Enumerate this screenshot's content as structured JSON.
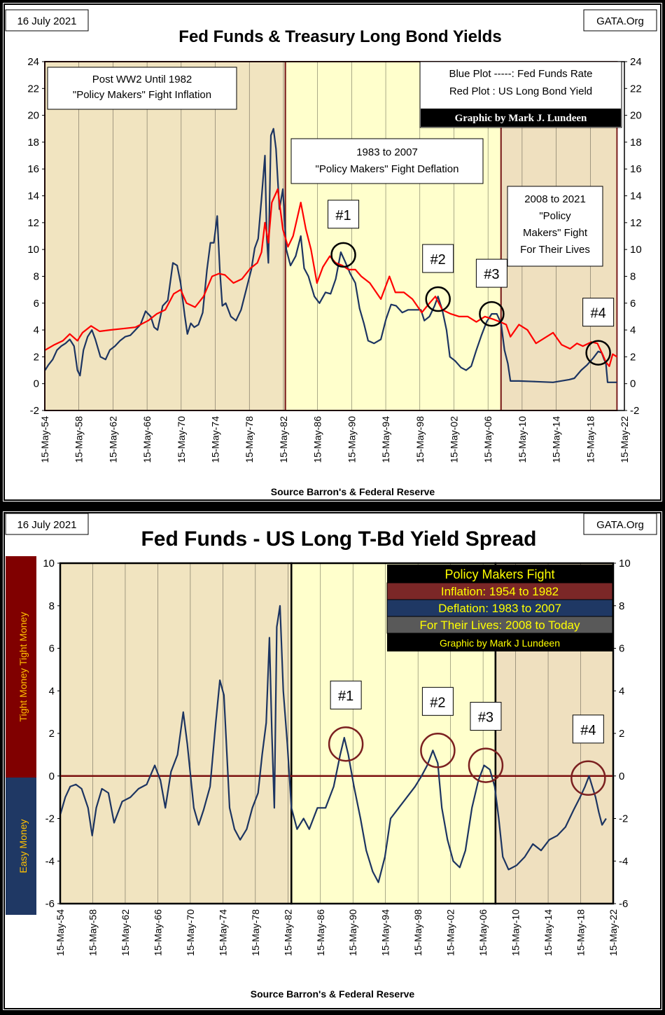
{
  "page": {
    "title": "Fed Funds & Treasury Long Bond Yields and Fed Funds - US Long T-Bd Yield Spread"
  },
  "colors": {
    "fed_funds": "#1c3461",
    "long_bond": "#ff0000",
    "era1_bg": "#f1e4c0",
    "era2_bg": "#ffffcc",
    "era3_bg": "#efe0bf",
    "era_border": "#7b1e1e",
    "tight_bar": "#800000",
    "easy_bar": "#1f3864",
    "circle1": "#000000",
    "circle2": "#7b2020"
  },
  "chart_data": [
    {
      "type": "line",
      "title": "Fed Funds & Treasury Long Bond Yields",
      "date_label": "16 July 2021",
      "site_label": "GATA.Org",
      "source": "Source Barron's & Federal Reserve",
      "ylim": [
        -2,
        24
      ],
      "yticks": [
        "-2",
        "0",
        "2",
        "4",
        "6",
        "8",
        "10",
        "12",
        "14",
        "16",
        "18",
        "20",
        "22",
        "24"
      ],
      "xlim": [
        1954.37,
        2022.37
      ],
      "xticks": [
        "15-May-54",
        "15-May-58",
        "15-May-62",
        "15-May-66",
        "15-May-70",
        "15-May-74",
        "15-May-78",
        "15-May-82",
        "15-May-86",
        "15-May-90",
        "15-May-94",
        "15-May-98",
        "15-May-02",
        "15-May-06",
        "15-May-10",
        "15-May-14",
        "15-May-18",
        "15-May-22"
      ],
      "eras": [
        {
          "start": 1954.37,
          "end": 1982.6,
          "label": "Post WW2 Until 1982 \"Policy Makers\" Fight Inflation"
        },
        {
          "start": 1982.6,
          "end": 2007.9,
          "label": "1983 to 2007 \"Policy Makers\" Fight Deflation"
        },
        {
          "start": 2007.9,
          "end": 2021.5,
          "label": "2008 to 2021 \"Policy Makers\" Fight For Their Lives"
        }
      ],
      "annotations": {
        "era1_line1": "Post WW2 Until 1982",
        "era1_line2": "\"Policy Makers\" Fight Inflation",
        "era2_line1": "1983 to 2007",
        "era2_line2": "\"Policy Makers\" Fight Deflation",
        "era3_line1": "2008 to 2021",
        "era3_line2": "\"Policy",
        "era3_line3": "Makers\" Fight",
        "era3_line4": "For Their Lives",
        "legend_line1": "Blue Plot -----: Fed Funds Rate",
        "legend_line2": "Red Plot : US Long Bond Yield",
        "credit": "Graphic by Mark J. Lundeen"
      },
      "markers": [
        {
          "label": "#1",
          "x": 1989.4,
          "y": 9.6
        },
        {
          "label": "#2",
          "x": 2000.5,
          "y": 6.3
        },
        {
          "label": "#3",
          "x": 2006.8,
          "y": 5.2
        },
        {
          "label": "#4",
          "x": 2019.3,
          "y": 2.3
        }
      ],
      "series": [
        {
          "name": "Fed Funds Rate",
          "x": [
            1954.4,
            1954.8,
            1955.3,
            1955.8,
            1956.3,
            1956.8,
            1957.3,
            1957.8,
            1958.2,
            1958.5,
            1958.9,
            1959.4,
            1959.9,
            1960.3,
            1960.9,
            1961.5,
            1962.0,
            1962.6,
            1963.2,
            1963.8,
            1964.4,
            1965.0,
            1965.6,
            1966.2,
            1966.8,
            1967.2,
            1967.6,
            1968.2,
            1968.8,
            1969.4,
            1969.9,
            1970.3,
            1970.8,
            1971.1,
            1971.5,
            1971.9,
            1972.4,
            1972.9,
            1973.4,
            1973.8,
            1974.2,
            1974.6,
            1974.9,
            1975.2,
            1975.6,
            1976.2,
            1976.8,
            1977.4,
            1978.0,
            1978.6,
            1979.0,
            1979.4,
            1979.8,
            1980.2,
            1980.4,
            1980.6,
            1980.9,
            1981.2,
            1981.5,
            1981.9,
            1982.3,
            1982.7,
            1983.2,
            1983.8,
            1984.4,
            1984.8,
            1985.3,
            1986.0,
            1986.6,
            1987.3,
            1987.9,
            1988.5,
            1989.1,
            1989.6,
            1990.2,
            1990.8,
            1991.3,
            1991.8,
            1992.3,
            1993.0,
            1993.8,
            1994.4,
            1995.0,
            1995.6,
            1996.3,
            1997.0,
            1997.8,
            1998.5,
            1998.9,
            1999.5,
            2000.1,
            2000.5,
            2001.0,
            2001.5,
            2001.9,
            2002.5,
            2003.2,
            2003.8,
            2004.4,
            2005.0,
            2005.6,
            2006.2,
            2006.8,
            2007.4,
            2007.9,
            2008.3,
            2008.7,
            2009.0,
            2010.0,
            2012.0,
            2014.0,
            2015.9,
            2016.5,
            2017.3,
            2018.0,
            2018.7,
            2019.3,
            2019.7,
            2020.0,
            2020.2,
            2020.4,
            2021.5
          ],
          "y": [
            1.0,
            1.4,
            1.8,
            2.5,
            2.8,
            3.0,
            3.3,
            2.8,
            1.0,
            0.6,
            2.5,
            3.5,
            4.0,
            3.3,
            2.0,
            1.8,
            2.5,
            2.8,
            3.2,
            3.5,
            3.6,
            4.0,
            4.4,
            5.4,
            5.0,
            4.2,
            4.0,
            5.8,
            6.2,
            9.0,
            8.8,
            7.5,
            5.0,
            3.7,
            4.5,
            4.2,
            4.4,
            5.3,
            8.5,
            10.5,
            10.5,
            12.5,
            8.5,
            5.8,
            6.0,
            5.0,
            4.7,
            5.5,
            7.0,
            8.5,
            10.1,
            10.8,
            13.8,
            17.0,
            11.0,
            9.0,
            18.5,
            19.0,
            17.5,
            13.0,
            14.5,
            10.0,
            8.8,
            9.5,
            11.0,
            8.6,
            8.0,
            6.5,
            6.0,
            6.8,
            6.7,
            7.8,
            9.8,
            9.1,
            8.2,
            7.5,
            5.6,
            4.5,
            3.2,
            3.0,
            3.3,
            4.8,
            5.9,
            5.8,
            5.3,
            5.5,
            5.5,
            5.5,
            4.7,
            5.0,
            5.8,
            6.5,
            5.5,
            4.0,
            2.0,
            1.7,
            1.2,
            1.0,
            1.3,
            2.5,
            3.6,
            4.6,
            5.2,
            5.2,
            4.5,
            2.5,
            1.5,
            0.2,
            0.2,
            0.15,
            0.1,
            0.3,
            0.4,
            1.0,
            1.4,
            1.9,
            2.4,
            2.3,
            1.8,
            1.5,
            0.1,
            0.1
          ]
        },
        {
          "name": "US Long Bond Yield",
          "x": [
            1954.4,
            1955.5,
            1956.5,
            1957.3,
            1958.2,
            1958.8,
            1959.8,
            1960.8,
            1962.0,
            1963.5,
            1965.0,
            1966.5,
            1967.5,
            1968.5,
            1969.5,
            1970.3,
            1971.0,
            1972.0,
            1973.0,
            1974.0,
            1974.8,
            1975.5,
            1976.5,
            1977.5,
            1978.5,
            1979.3,
            1979.8,
            1980.2,
            1980.6,
            1981.0,
            1981.7,
            1982.3,
            1982.9,
            1983.5,
            1984.4,
            1985.0,
            1985.6,
            1986.3,
            1987.0,
            1987.8,
            1988.5,
            1989.3,
            1990.0,
            1990.8,
            1991.5,
            1992.5,
            1993.8,
            1994.8,
            1995.5,
            1996.5,
            1997.5,
            1998.6,
            1999.5,
            2000.2,
            2001.0,
            2002.0,
            2003.0,
            2004.0,
            2005.0,
            2006.0,
            2007.0,
            2007.8,
            2008.5,
            2009.0,
            2010.0,
            2011.0,
            2012.0,
            2013.0,
            2014.0,
            2015.0,
            2016.0,
            2016.8,
            2017.5,
            2018.5,
            2019.2,
            2019.8,
            2020.2,
            2020.6,
            2021.0,
            2021.5
          ],
          "y": [
            2.5,
            2.9,
            3.2,
            3.7,
            3.2,
            3.8,
            4.3,
            3.9,
            4.0,
            4.1,
            4.2,
            4.7,
            5.2,
            5.5,
            6.7,
            7.0,
            6.0,
            5.7,
            6.5,
            8.0,
            8.2,
            8.1,
            7.5,
            7.8,
            8.6,
            9.0,
            9.8,
            12.0,
            10.5,
            13.5,
            14.5,
            11.5,
            10.2,
            11.0,
            13.5,
            11.5,
            10.0,
            7.5,
            8.7,
            9.5,
            9.0,
            8.8,
            8.5,
            8.5,
            8.0,
            7.5,
            6.3,
            8.0,
            6.8,
            6.8,
            6.3,
            5.3,
            6.0,
            6.5,
            5.5,
            5.2,
            5.0,
            5.0,
            4.6,
            5.0,
            4.8,
            4.6,
            4.4,
            3.5,
            4.4,
            4.0,
            3.0,
            3.4,
            3.8,
            2.9,
            2.6,
            3.0,
            2.8,
            3.1,
            3.0,
            2.2,
            1.6,
            1.3,
            2.2,
            2.0
          ]
        }
      ]
    },
    {
      "type": "line",
      "title": "Fed Funds - US Long T-Bd Yield Spread",
      "date_label": "16 July 2021",
      "site_label": "GATA.Org",
      "source": "Source Barron's & Federal Reserve",
      "ylim": [
        -6,
        10
      ],
      "yticks": [
        "-6",
        "-4",
        "-2",
        "0",
        "2",
        "4",
        "6",
        "8",
        "10"
      ],
      "xlim": [
        1954.37,
        2022.37
      ],
      "xticks": [
        "15-May-54",
        "15-May-58",
        "15-May-62",
        "15-May-66",
        "15-May-70",
        "15-May-74",
        "15-May-78",
        "15-May-82",
        "15-May-86",
        "15-May-90",
        "15-May-94",
        "15-May-98",
        "15-May-02",
        "15-May-06",
        "15-May-10",
        "15-May-14",
        "15-May-18",
        "15-May-22"
      ],
      "side_labels": {
        "tight": "Tight Money  Tight Money",
        "easy": "Easy Money"
      },
      "legend": {
        "header": "Policy Makers Fight",
        "row1": "Inflation: 1954 to 1982",
        "row2": "Deflation: 1983 to 2007",
        "row3": "For Their Lives: 2008 to Today",
        "credit": "Graphic by Mark J Lundeen"
      },
      "markers": [
        {
          "label": "#1",
          "x": 1989.5,
          "y": 1.5
        },
        {
          "label": "#2",
          "x": 2000.8,
          "y": 1.2
        },
        {
          "label": "#3",
          "x": 2006.7,
          "y": 0.5
        },
        {
          "label": "#4",
          "x": 2019.3,
          "y": -0.1
        }
      ],
      "series": [
        {
          "name": "Fed Funds - Long Bond Spread",
          "x": [
            1954.4,
            1955.0,
            1955.6,
            1956.3,
            1957.0,
            1957.8,
            1958.3,
            1958.8,
            1959.5,
            1960.3,
            1961.0,
            1962.0,
            1963.0,
            1964.0,
            1965.0,
            1966.0,
            1966.7,
            1967.3,
            1968.0,
            1968.8,
            1969.5,
            1970.0,
            1970.8,
            1971.4,
            1972.0,
            1972.8,
            1973.5,
            1974.0,
            1974.5,
            1975.2,
            1975.8,
            1976.5,
            1977.3,
            1978.0,
            1978.7,
            1979.2,
            1979.7,
            1980.1,
            1980.4,
            1980.7,
            1981.0,
            1981.4,
            1981.8,
            1982.3,
            1982.8,
            1983.5,
            1984.3,
            1985.0,
            1986.0,
            1987.0,
            1988.0,
            1988.8,
            1989.3,
            1989.8,
            1990.5,
            1991.3,
            1992.0,
            1992.8,
            1993.5,
            1994.3,
            1995.0,
            1996.0,
            1997.0,
            1998.0,
            1998.8,
            1999.5,
            2000.2,
            2000.8,
            2001.3,
            2002.0,
            2002.7,
            2003.5,
            2004.2,
            2005.0,
            2005.8,
            2006.5,
            2007.2,
            2007.8,
            2008.3,
            2008.8,
            2009.5,
            2010.5,
            2011.5,
            2012.5,
            2013.5,
            2014.5,
            2015.5,
            2016.5,
            2017.5,
            2018.3,
            2018.9,
            2019.4,
            2019.8,
            2020.2,
            2020.6,
            2021.0,
            2021.5
          ],
          "y": [
            -1.8,
            -1.0,
            -0.5,
            -0.4,
            -0.6,
            -1.5,
            -2.8,
            -1.5,
            -0.6,
            -0.8,
            -2.2,
            -1.2,
            -1.0,
            -0.6,
            -0.4,
            0.5,
            -0.2,
            -1.5,
            0.2,
            1.0,
            3.0,
            1.5,
            -1.5,
            -2.3,
            -1.6,
            -0.5,
            2.5,
            4.5,
            3.8,
            -1.5,
            -2.5,
            -3.0,
            -2.5,
            -1.5,
            -0.8,
            1.0,
            2.5,
            6.5,
            2.0,
            -1.5,
            7.0,
            8.0,
            4.0,
            1.5,
            -1.5,
            -2.5,
            -2.0,
            -2.5,
            -1.5,
            -1.5,
            -0.5,
            1.0,
            1.8,
            1.0,
            -0.5,
            -2.0,
            -3.5,
            -4.5,
            -5.0,
            -3.8,
            -2.0,
            -1.5,
            -1.0,
            -0.5,
            0.0,
            0.5,
            1.2,
            0.6,
            -1.5,
            -3.0,
            -4.0,
            -4.3,
            -3.5,
            -1.5,
            -0.2,
            0.5,
            0.3,
            -0.5,
            -2.0,
            -3.8,
            -4.4,
            -4.2,
            -3.8,
            -3.2,
            -3.5,
            -3.0,
            -2.8,
            -2.4,
            -1.6,
            -1.0,
            -0.5,
            0.0,
            -0.5,
            -1.0,
            -1.7,
            -2.3,
            -2.0
          ]
        }
      ]
    }
  ]
}
